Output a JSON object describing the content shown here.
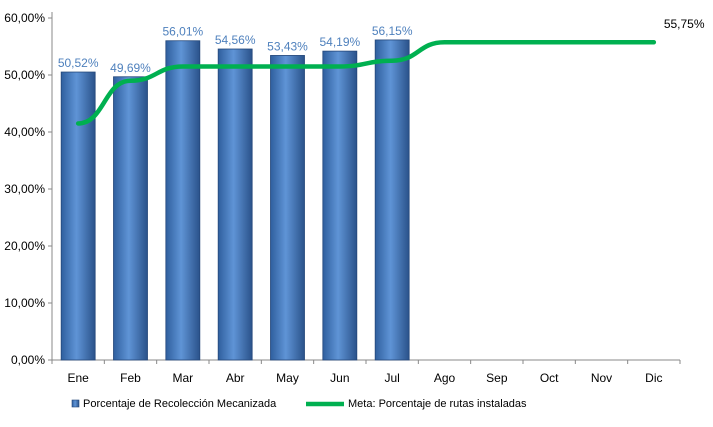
{
  "chart_data": {
    "type": "bar",
    "categories": [
      "Ene",
      "Feb",
      "Mar",
      "Abr",
      "May",
      "Jun",
      "Jul",
      "Ago",
      "Sep",
      "Oct",
      "Nov",
      "Dic"
    ],
    "series": [
      {
        "name": "Porcentaje de Recolección Mecanizada",
        "type": "bar",
        "values": [
          50.52,
          49.69,
          56.01,
          54.56,
          53.43,
          54.19,
          56.15,
          null,
          null,
          null,
          null,
          null
        ],
        "labels": [
          "50,52%",
          "49,69%",
          "56,01%",
          "54,56%",
          "53,43%",
          "54,19%",
          "56,15%",
          "",
          "",
          "",
          "",
          ""
        ],
        "color": "#4f81bd"
      },
      {
        "name": "Meta: Porcentaje de rutas instaladas",
        "type": "line",
        "values": [
          41.5,
          49,
          51.5,
          51.5,
          51.5,
          51.5,
          52.5,
          55.75,
          55.75,
          55.75,
          55.75,
          55.75
        ],
        "end_label": "55,75%",
        "color": "#00b050"
      }
    ],
    "yticks": [
      "0,00%",
      "10,00%",
      "20,00%",
      "30,00%",
      "40,00%",
      "50,00%",
      "60,00%"
    ],
    "ylim": [
      0,
      60
    ],
    "grid": false,
    "legend_position": "bottom"
  }
}
